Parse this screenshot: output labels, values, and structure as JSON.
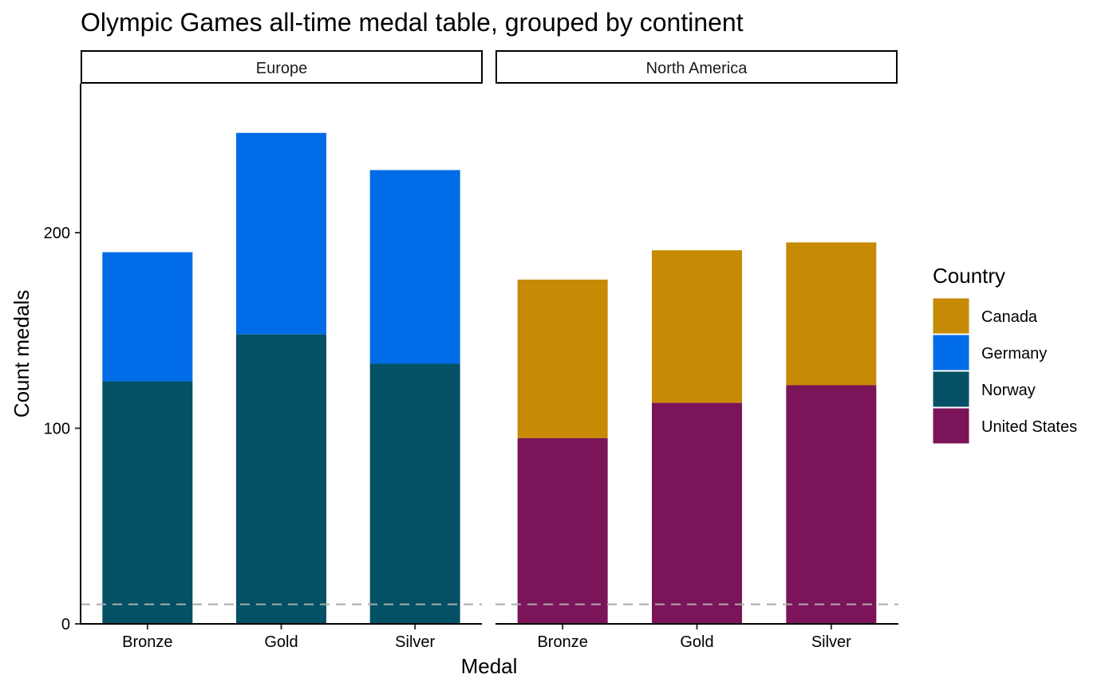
{
  "chart_data": {
    "type": "bar",
    "stacked": true,
    "title": "Olympic Games all-time medal table, grouped by continent",
    "xlabel": "Medal",
    "ylabel": "Count medals",
    "ylim": [
      0,
      275
    ],
    "yticks": [
      0,
      100,
      200
    ],
    "categories": [
      "Bronze",
      "Gold",
      "Silver"
    ],
    "reference_line": {
      "y": 10,
      "style": "dashed",
      "color": "#AAAAAA"
    },
    "legend": {
      "title": "Country",
      "placement": "right",
      "entries": [
        {
          "label": "Canada",
          "color": "#C68A04"
        },
        {
          "label": "Germany",
          "color": "#006CE8"
        },
        {
          "label": "Norway",
          "color": "#045166"
        },
        {
          "label": "United States",
          "color": "#7B1458"
        }
      ]
    },
    "facets": [
      {
        "name": "Europe",
        "series": [
          {
            "name": "Norway",
            "color": "#045166",
            "values": [
              124,
              148,
              133
            ]
          },
          {
            "name": "Germany",
            "color": "#006CE8",
            "values": [
              66,
              103,
              99
            ]
          }
        ]
      },
      {
        "name": "North America",
        "series": [
          {
            "name": "United States",
            "color": "#7B1458",
            "values": [
              95,
              113,
              122
            ]
          },
          {
            "name": "Canada",
            "color": "#C68A04",
            "values": [
              81,
              78,
              73
            ]
          }
        ]
      }
    ]
  }
}
